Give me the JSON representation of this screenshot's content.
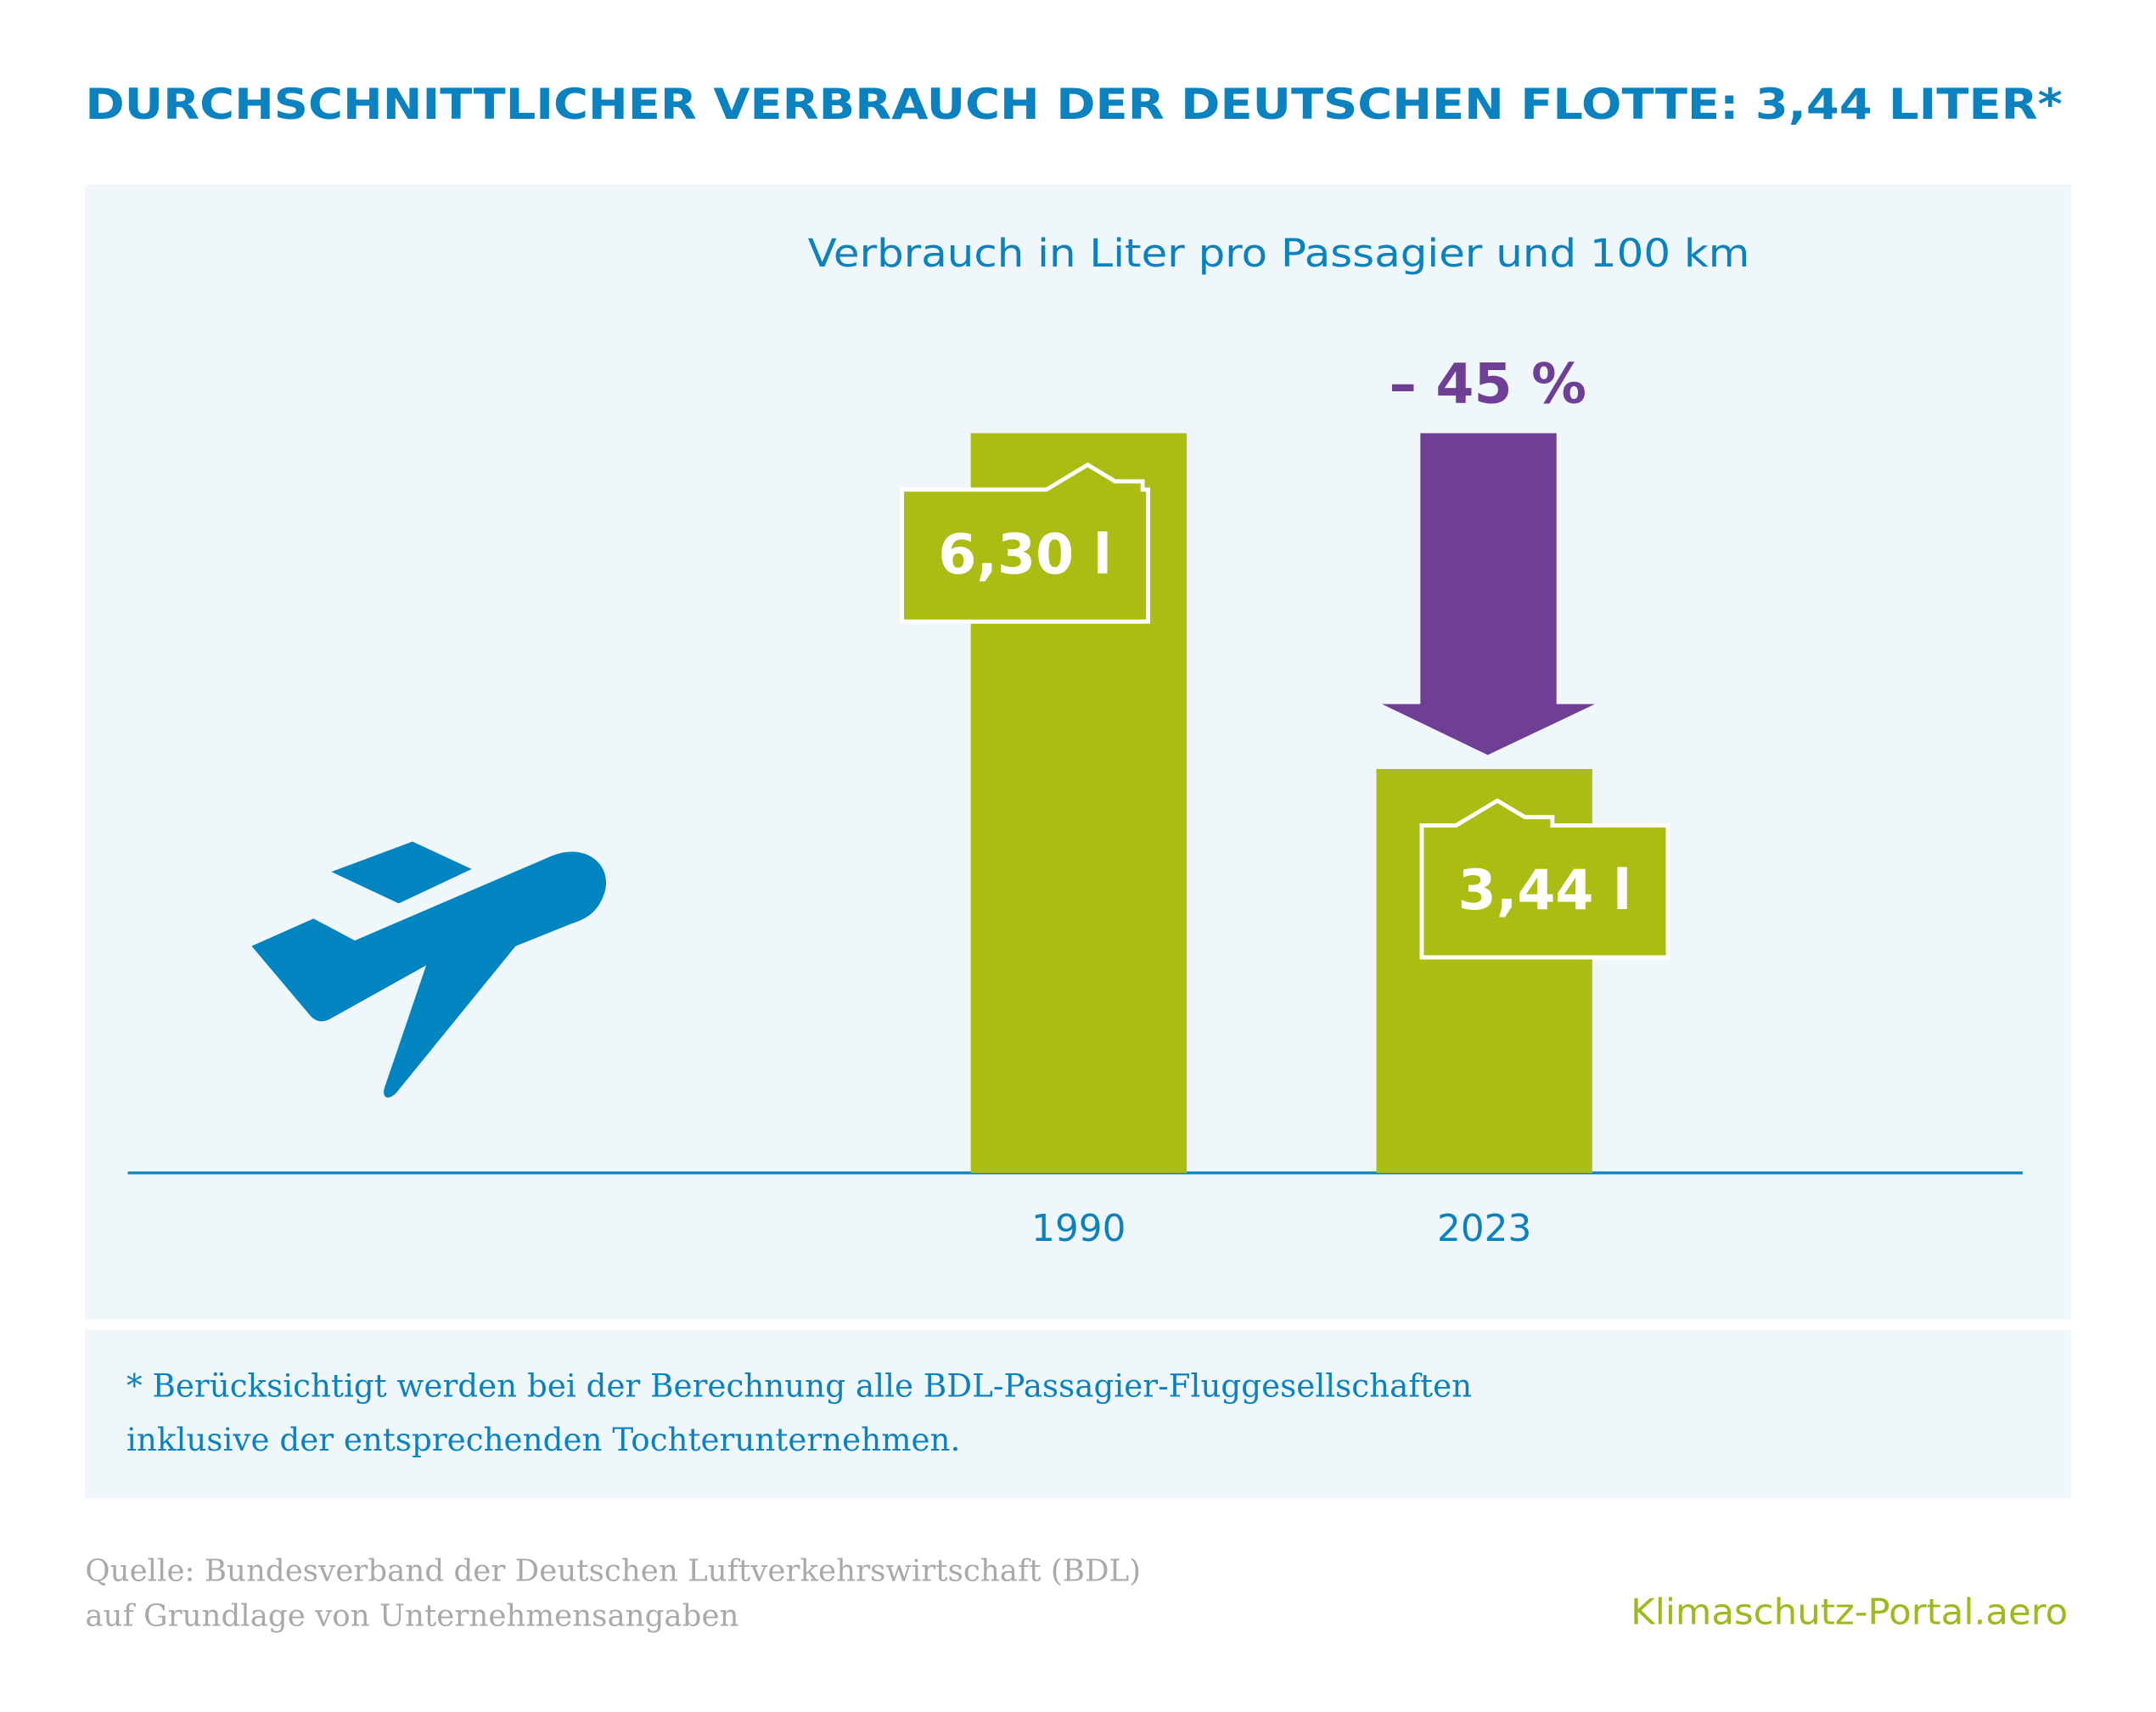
{
  "chart_data": {
    "type": "bar",
    "title": "DURCHSCHNITTLICHER VERBRAUCH DER DEUTSCHEN FLOTTE: 3,44 LITER*",
    "subtitle": "Verbrauch in Liter pro Passagier und 100 km",
    "categories": [
      "1990",
      "2023"
    ],
    "values": [
      6.3,
      3.44
    ],
    "value_labels": [
      "6,30 l",
      "3,44 l"
    ],
    "color": "#abbd12",
    "annotation": "– 45 %",
    "footnote": [
      "* Berücksichtigt werden bei der Berechnung alle BDL-Passagier-Fluggesellschaften",
      "inklusive der entsprechenden Tochterunternehmen."
    ],
    "source": [
      "Quelle: Bundesverband der Deutschen Luftverkehrswirtschaft (BDL)",
      "auf Grundlage von Unternehmensangaben"
    ],
    "brand": "Klimaschutz-Portal.aero"
  }
}
